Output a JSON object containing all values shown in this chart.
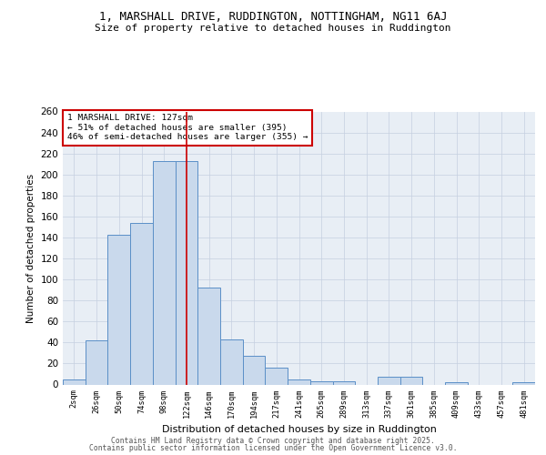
{
  "title1": "1, MARSHALL DRIVE, RUDDINGTON, NOTTINGHAM, NG11 6AJ",
  "title2": "Size of property relative to detached houses in Ruddington",
  "xlabel": "Distribution of detached houses by size in Ruddington",
  "ylabel": "Number of detached properties",
  "categories": [
    "2sqm",
    "26sqm",
    "50sqm",
    "74sqm",
    "98sqm",
    "122sqm",
    "146sqm",
    "170sqm",
    "194sqm",
    "217sqm",
    "241sqm",
    "265sqm",
    "289sqm",
    "313sqm",
    "337sqm",
    "361sqm",
    "385sqm",
    "409sqm",
    "433sqm",
    "457sqm",
    "481sqm"
  ],
  "values": [
    5,
    42,
    143,
    154,
    213,
    213,
    92,
    43,
    27,
    16,
    5,
    3,
    3,
    0,
    7,
    7,
    0,
    2,
    0,
    0,
    2
  ],
  "highlight_index": 5,
  "bar_color": "#c9d9ec",
  "bar_edge_color": "#5b8fc7",
  "highlight_line_color": "#cc0000",
  "annotation_text": "1 MARSHALL DRIVE: 127sqm\n← 51% of detached houses are smaller (395)\n46% of semi-detached houses are larger (355) →",
  "annotation_box_color": "#ffffff",
  "annotation_box_edge": "#cc0000",
  "footer1": "Contains HM Land Registry data © Crown copyright and database right 2025.",
  "footer2": "Contains public sector information licensed under the Open Government Licence v3.0.",
  "ylim": [
    0,
    260
  ],
  "yticks": [
    0,
    20,
    40,
    60,
    80,
    100,
    120,
    140,
    160,
    180,
    200,
    220,
    240,
    260
  ],
  "bg_color": "#e8eef5",
  "fig_bg_color": "#ffffff"
}
